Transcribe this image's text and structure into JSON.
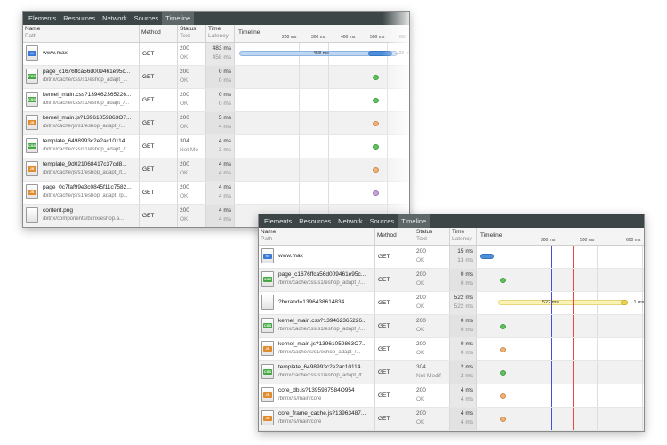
{
  "panel1": {
    "tabs": [
      "Elements",
      "Resources",
      "Network",
      "Sources",
      "Timeline"
    ],
    "header": {
      "name": "Name",
      "path": "Path",
      "method": "Method",
      "status": "Status",
      "text": "Text",
      "time": "Time",
      "latency": "Latency",
      "timeline": "Timeline",
      "ticks": [
        "200 ms",
        "300 ms",
        "400 ms",
        "500 ms",
        "600"
      ]
    },
    "rows": [
      {
        "name": "www.max",
        "path": "",
        "method": "GET",
        "status": "200",
        "text": "OK",
        "time": "483 ms",
        "latency": "458 ms",
        "icon": "doc-icon",
        "bar_label": "458 ms",
        "end_label": "26 ms"
      },
      {
        "name": "page_c1676ffca56d009461e95c...",
        "path": "/bitrix/cache/css/s1/eshop_adapt_...",
        "method": "GET",
        "status": "200",
        "text": "OK",
        "time": "0 ms",
        "latency": "0 ms",
        "icon": "css-icon",
        "dot": "green"
      },
      {
        "name": "kernel_main.css?139462365226...",
        "path": "/bitrix/cache/css/s1/eshop_adapt_/...",
        "method": "GET",
        "status": "200",
        "text": "OK",
        "time": "0 ms",
        "latency": "0 ms",
        "icon": "css-icon",
        "dot": "green"
      },
      {
        "name": "kernel_main.js?13961059863O7...",
        "path": "/bitrix/cache/js/s1/eshop_adapt_/...",
        "method": "GET",
        "status": "200",
        "text": "OK",
        "time": "5 ms",
        "latency": "4 ms",
        "icon": "js-icon",
        "dot": "orange"
      },
      {
        "name": "template_6498993c2e2ac10114...",
        "path": "/bitrix/cache/css/s1/eshop_adapt_/t...",
        "method": "GET",
        "status": "304",
        "text": "Not Mo",
        "time": "4 ms",
        "latency": "3 ms",
        "icon": "css-icon",
        "dot": "green"
      },
      {
        "name": "template_9d021068417c37cd8...",
        "path": "/bitrix/cache/js/s1/eshop_adapt_/t...",
        "method": "GET",
        "status": "200",
        "text": "OK",
        "time": "4 ms",
        "latency": "4 ms",
        "icon": "js-icon",
        "dot": "orange"
      },
      {
        "name": "page_0c7faf99e3c0845f11c7582...",
        "path": "/bitrix/cache/js/s1/eshop_adapt_/p...",
        "method": "GET",
        "status": "200",
        "text": "OK",
        "time": "4 ms",
        "latency": "4 ms",
        "icon": "js-icon",
        "dot": "purple"
      },
      {
        "name": "content.png",
        "path": "/bitrix/components/bitrix/eshop.a...",
        "method": "GET",
        "status": "200",
        "text": "OK",
        "time": "4 ms",
        "latency": "4 ms",
        "icon": "image-icon",
        "dot": ""
      }
    ]
  },
  "panel2": {
    "tabs": [
      "Elements",
      "Resources",
      "Network",
      "Sources",
      "Timeline"
    ],
    "header": {
      "name": "Name",
      "path": "Path",
      "method": "Method",
      "status": "Status",
      "text": "Text",
      "time": "Time",
      "latency": "Latency",
      "timeline": "Timeline",
      "ticks": [
        "300 ms",
        "500 ms",
        "600 ms"
      ]
    },
    "rows": [
      {
        "name": "www.max",
        "path": "",
        "method": "GET",
        "status": "200",
        "text": "OK",
        "time": "15 ms",
        "latency": "13 ms",
        "icon": "doc-icon"
      },
      {
        "name": "page_c1676ffca56d009461e95c...",
        "path": "/bitrix/cache/css/s1/eshop_adapt_/...",
        "method": "GET",
        "status": "200",
        "text": "OK",
        "time": "0 ms",
        "latency": "0 ms",
        "icon": "css-icon",
        "dot": "green"
      },
      {
        "name": "?bxrand=1396438614834",
        "path": "",
        "method": "GET",
        "status": "200",
        "text": "OK",
        "time": "522 ms",
        "latency": "522 ms",
        "icon": "blank-icon",
        "bar_label": "522 ms",
        "end_label": "1 ms"
      },
      {
        "name": "kernel_main.css?139462365226...",
        "path": "/bitrix/cache/css/s1/eshop_adapt_/...",
        "method": "GET",
        "status": "200",
        "text": "OK",
        "time": "0 ms",
        "latency": "0 ms",
        "icon": "css-icon",
        "dot": "green"
      },
      {
        "name": "kernel_main.js?13961059863O7...",
        "path": "/bitrix/cache/js/s1/eshop_adapt_/...",
        "method": "GET",
        "status": "200",
        "text": "OK",
        "time": "0 ms",
        "latency": "0 ms",
        "icon": "js-icon",
        "dot": "orange"
      },
      {
        "name": "template_6498993c2e2ac10114...",
        "path": "/bitrix/cache/css/s1/eshop_adapt_/t...",
        "method": "GET",
        "status": "304",
        "text": "Not Modif",
        "time": "2 ms",
        "latency": "2 ms",
        "icon": "css-icon",
        "dot": "green"
      },
      {
        "name": "core_db.js?1395987584O954",
        "path": "/bitrix/js/main/core",
        "method": "GET",
        "status": "200",
        "text": "OK",
        "time": "4 ms",
        "latency": "4 ms",
        "icon": "js-icon",
        "dot": "orange"
      },
      {
        "name": "core_frame_cache.js?13963487...",
        "path": "/bitrix/js/main/core",
        "method": "GET",
        "status": "200",
        "text": "OK",
        "time": "4 ms",
        "latency": "4 ms",
        "icon": "js-icon",
        "dot": "orange"
      }
    ]
  },
  "icons": {
    "doc": "doc-icon",
    "css": "css-icon",
    "js": "js-icon",
    "image": "image-icon"
  },
  "colors": {
    "toolbar": "#3c4646",
    "green_dot": "#62c262",
    "orange_dot": "#f0b27a",
    "purple_dot": "#c7a3da",
    "blue_bar": "#4f8fd9",
    "yellow_bar": "#ecd74c",
    "blue_marker": "#4a4ae0",
    "red_marker": "#e84545"
  }
}
